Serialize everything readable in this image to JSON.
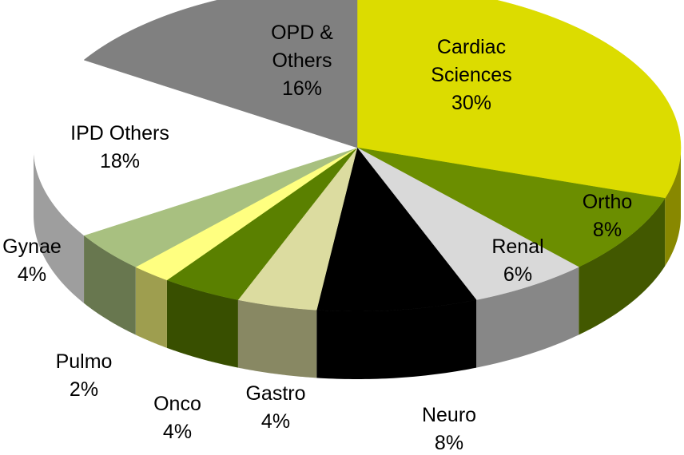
{
  "chart_data": {
    "type": "pie3d",
    "categories": [
      "Cardiac Sciences",
      "Ortho",
      "Renal",
      "Neuro",
      "Gastro",
      "Onco",
      "Pulmo",
      "Gynae",
      "IPD Others",
      "OPD & Others"
    ],
    "values": [
      30,
      8,
      6,
      8,
      4,
      4,
      2,
      4,
      18,
      16
    ],
    "value_labels": [
      "30%",
      "8%",
      "6%",
      "8%",
      "4%",
      "4%",
      "2%",
      "4%",
      "18%",
      "16%"
    ],
    "colors": [
      "#dcdc00",
      "#6b8e00",
      "#d9d9d9",
      "#000000",
      "#dcdca0",
      "#5a8000",
      "#ffff80",
      "#a8c080",
      "#ffffff",
      "#808080"
    ]
  }
}
